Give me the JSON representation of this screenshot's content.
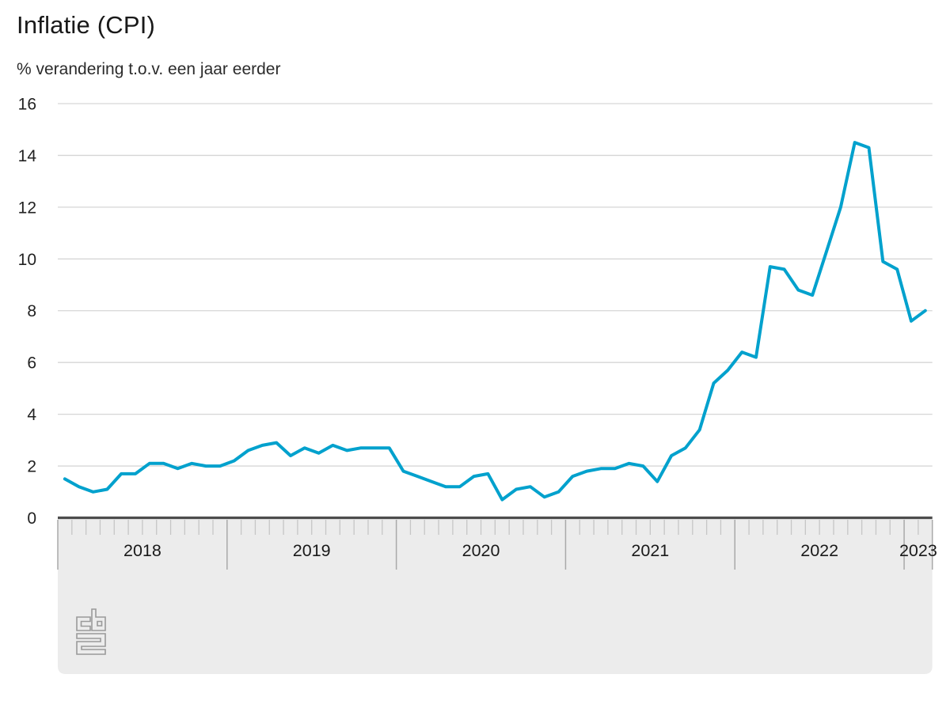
{
  "header": {
    "title": "Inflatie (CPI)",
    "subtitle": "% verandering t.o.v. een jaar eerder"
  },
  "branding": {
    "logo": "CBS"
  },
  "colors": {
    "line": "#00a1cd",
    "grid": "#d6d6d6",
    "axis": "#4d4d4d",
    "band": "#ececec",
    "tick_short": "#c6c6c6",
    "tick_long": "#a9a9a9",
    "label": "#222222",
    "year_label": "#1a1a1a",
    "logo_stroke": "#9a9a9a"
  },
  "chart_data": {
    "type": "line",
    "title": "Inflatie (CPI)",
    "subtitle": "% verandering t.o.v. een jaar eerder",
    "unit": "%",
    "x_frequency": "monthly",
    "x_start": "2018-01",
    "x_end": "2023-02",
    "year_labels": [
      "2018",
      "2019",
      "2020",
      "2021",
      "2022",
      "2023"
    ],
    "y_ticks": [
      "0",
      "2",
      "4",
      "6",
      "8",
      "10",
      "12",
      "14",
      "16"
    ],
    "ylim": [
      0,
      16
    ],
    "grid": true,
    "legend": false,
    "series": [
      {
        "name": "Inflatie (CPI)",
        "color": "#00a1cd",
        "values": [
          1.5,
          1.2,
          1.0,
          1.1,
          1.7,
          1.7,
          2.1,
          2.1,
          1.9,
          2.1,
          2.0,
          2.0,
          2.2,
          2.6,
          2.8,
          2.9,
          2.4,
          2.7,
          2.5,
          2.8,
          2.6,
          2.7,
          2.7,
          2.7,
          1.8,
          1.6,
          1.4,
          1.2,
          1.2,
          1.6,
          1.7,
          0.7,
          1.1,
          1.2,
          0.8,
          1.0,
          1.6,
          1.8,
          1.9,
          1.9,
          2.1,
          2.0,
          1.4,
          2.4,
          2.7,
          3.4,
          5.2,
          5.7,
          6.4,
          6.2,
          9.7,
          9.6,
          8.8,
          8.6,
          10.3,
          12.0,
          14.5,
          14.3,
          9.9,
          9.6,
          7.6,
          8.0
        ]
      }
    ]
  }
}
